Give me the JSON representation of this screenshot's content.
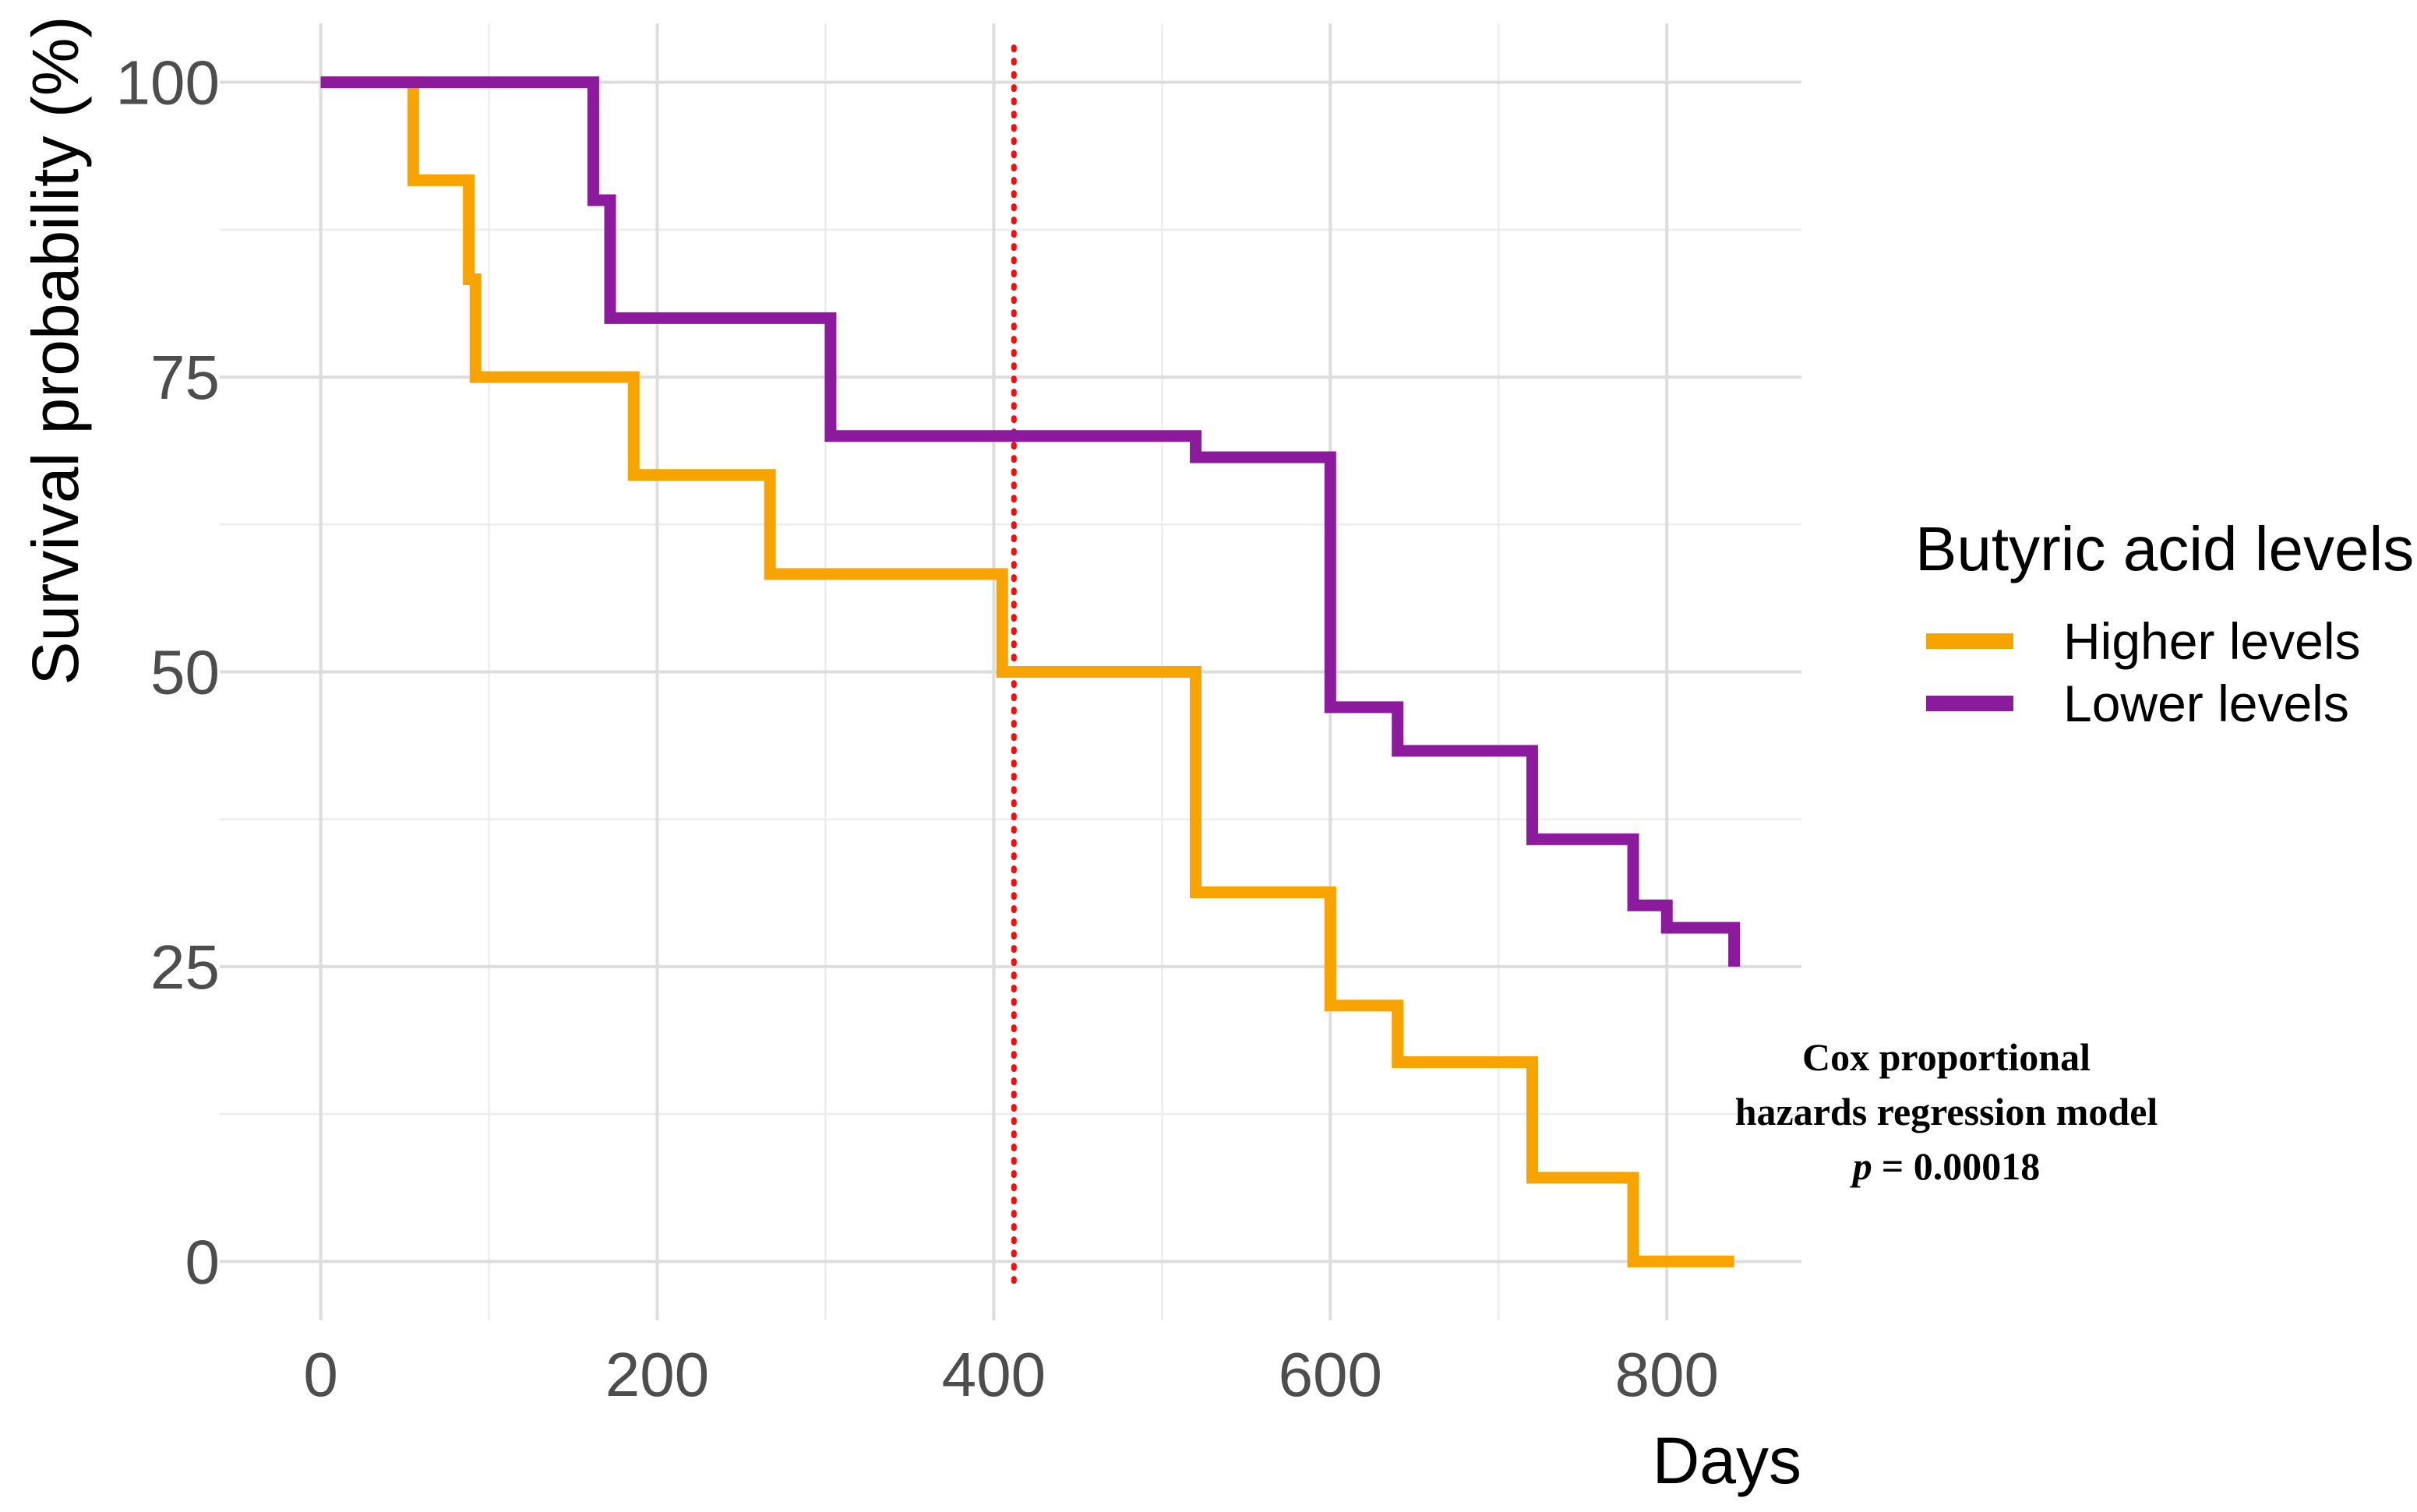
{
  "chart_data": {
    "type": "line",
    "step": true,
    "title": "",
    "xlabel": "Days",
    "ylabel": "Survival probability (%)",
    "xlim": [
      -60,
      880
    ],
    "ylim": [
      -5,
      105
    ],
    "xticks": [
      0,
      200,
      400,
      600,
      800
    ],
    "yticks": [
      0,
      25,
      50,
      75,
      100
    ],
    "xtick_labels": [
      "0",
      "200",
      "400",
      "600",
      "800"
    ],
    "ytick_labels": [
      "0",
      "25",
      "50",
      "75",
      "100"
    ],
    "grid": true,
    "reference_line": {
      "x": 412,
      "style": "dotted",
      "color": "#ee1111"
    },
    "legend": {
      "title": "Butyric acid levels",
      "position": "right",
      "entries": [
        "Higher levels",
        "Lower levels"
      ]
    },
    "series": [
      {
        "name": "Higher levels",
        "color": "#f7a300",
        "x": [
          0,
          55,
          88,
          92,
          186,
          267,
          405,
          520,
          600,
          640,
          720,
          780,
          840
        ],
        "y": [
          100,
          91.7,
          83.3,
          75,
          66.7,
          58.3,
          50,
          31.3,
          21.7,
          16.9,
          7.1,
          0,
          0
        ]
      },
      {
        "name": "Lower levels",
        "color": "#8b1a9c",
        "x": [
          0,
          162,
          172,
          303,
          520,
          600,
          640,
          720,
          780,
          800,
          840
        ],
        "y": [
          100,
          90,
          80,
          70,
          68.2,
          47,
          43.3,
          35.8,
          30.2,
          28.3,
          25
        ]
      }
    ],
    "annotation": {
      "line1": "Cox proportional",
      "line2": "hazards regression model",
      "p_label": "p",
      "p_value": "= 0.00018"
    }
  }
}
